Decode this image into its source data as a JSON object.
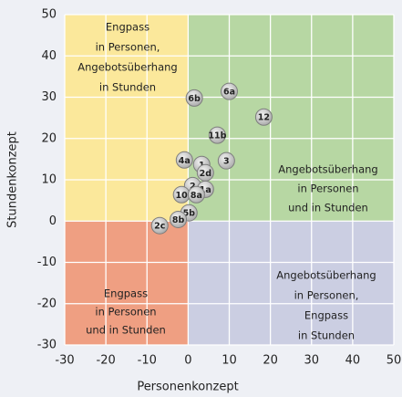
{
  "chart_data": {
    "type": "scatter",
    "x_label": "Personenkonzept",
    "y_label": "Stundenkonzept",
    "xlim": [
      -30,
      50
    ],
    "ylim": [
      -30,
      50
    ],
    "xticks": [
      -30,
      -20,
      -10,
      0,
      10,
      20,
      30,
      40,
      50
    ],
    "yticks": [
      -30,
      -20,
      -10,
      0,
      10,
      20,
      30,
      40,
      50
    ],
    "grid": true,
    "color": "#bdbdbd",
    "labels": [
      "6a",
      "6b",
      "12",
      "11b",
      "3",
      "4a",
      "1",
      "2d",
      "2",
      "1a",
      "10",
      "8a",
      "5b",
      "8b",
      "2c"
    ],
    "x": [
      10,
      1.5,
      18.4,
      7.1,
      9.3,
      -0.9,
      3.3,
      4.2,
      1.1,
      4.2,
      -1.6,
      2,
      0.2,
      -2.4,
      -6.9
    ],
    "values": [
      31.4,
      29.8,
      25.2,
      20.8,
      14.6,
      14.8,
      13.7,
      11.7,
      8.6,
      7.7,
      6.4,
      6.4,
      2,
      0.4,
      -1.1
    ],
    "quadrants": [
      {
        "color": "#fbe89b",
        "lines": [
          "Engpass",
          "in Personen,",
          "Angebotsüberhang",
          "in Stunden"
        ]
      },
      {
        "color": "#b7d7a3",
        "lines": [
          "Angebotsüberhang",
          "in Personen",
          "und in Stunden"
        ]
      },
      {
        "color": "#ef9f82",
        "lines": [
          "Engpass",
          "in Personen",
          "und in Stunden"
        ]
      },
      {
        "color": "#cbcee2",
        "lines": [
          "Angebotsüberhang",
          "in Personen,",
          "Engpass",
          "in Stunden"
        ]
      }
    ]
  }
}
